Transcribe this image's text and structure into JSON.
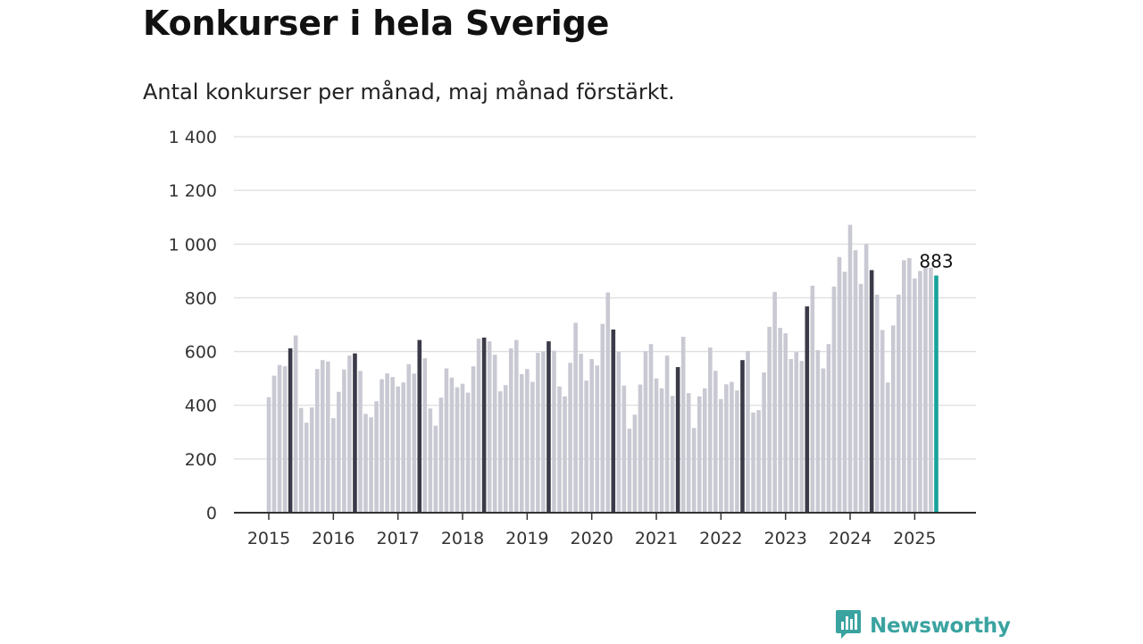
{
  "header": {
    "title": "Konkurser i hela Sverige",
    "subtitle": "Antal konkurser per månad, maj månad förstärkt."
  },
  "brand": {
    "name": "Newsworthy",
    "icon": "newsworthy-logo-icon",
    "color": "#3aa3a0"
  },
  "colors": {
    "bar": "#c9c9d3",
    "may_bar": "#3a3a48",
    "latest_bar": "#18a39c",
    "gridline": "#dedee3",
    "axis": "#333333"
  },
  "chart_data": {
    "type": "bar",
    "title": "Konkurser i hela Sverige",
    "subtitle": "Antal konkurser per månad, maj månad förstärkt.",
    "start": "2015-01",
    "highlight_month": "maj",
    "ylim": [
      0,
      1400
    ],
    "yticks": [
      0,
      200,
      400,
      600,
      800,
      1000,
      1200,
      1400
    ],
    "ytick_labels": [
      "0",
      "200",
      "400",
      "600",
      "800",
      "1 000",
      "1 200",
      "1 400"
    ],
    "xtick_labels": [
      "2015",
      "2016",
      "2017",
      "2018",
      "2019",
      "2020",
      "2021",
      "2022",
      "2023",
      "2024",
      "2025"
    ],
    "grid": true,
    "legend": "none",
    "latest_label": "883",
    "values": [
      430,
      510,
      550,
      545,
      612,
      660,
      390,
      335,
      392,
      535,
      568,
      563,
      352,
      450,
      533,
      585,
      593,
      528,
      368,
      355,
      415,
      497,
      519,
      505,
      470,
      485,
      553,
      518,
      643,
      575,
      388,
      324,
      428,
      537,
      503,
      467,
      480,
      447,
      545,
      648,
      652,
      638,
      588,
      452,
      475,
      612,
      643,
      516,
      535,
      487,
      595,
      600,
      638,
      603,
      470,
      433,
      558,
      707,
      592,
      492,
      572,
      548,
      703,
      820,
      682,
      599,
      473,
      313,
      365,
      477,
      601,
      628,
      500,
      463,
      585,
      435,
      542,
      655,
      445,
      315,
      433,
      463,
      615,
      528,
      423,
      478,
      487,
      455,
      568,
      602,
      373,
      382,
      522,
      692,
      822,
      688,
      668,
      572,
      598,
      565,
      768,
      845,
      605,
      537,
      628,
      842,
      952,
      897,
      1072,
      977,
      852,
      1000,
      903,
      812,
      680,
      485,
      697,
      812,
      940,
      948,
      872,
      900,
      915,
      912,
      883
    ]
  }
}
